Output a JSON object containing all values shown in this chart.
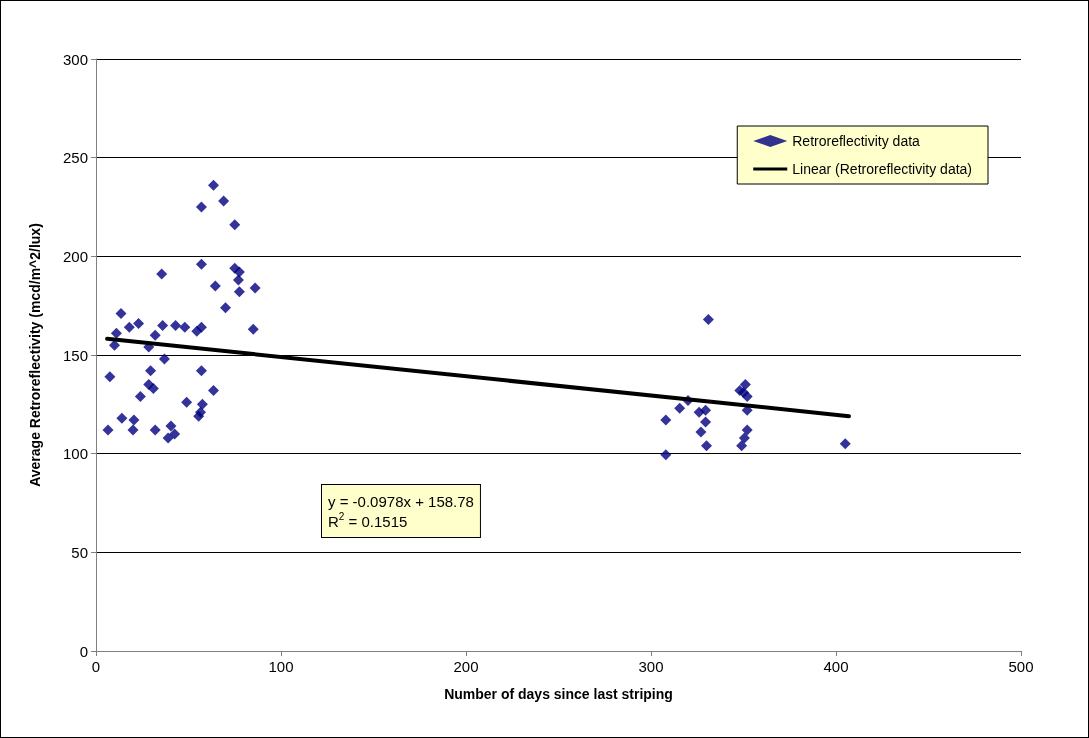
{
  "chart_data": {
    "type": "scatter",
    "xlabel": "Number of days since last striping",
    "ylabel": "Average Retroreflectivity (mcd/m^2/lux)",
    "xlim": [
      0,
      500
    ],
    "xticks": [
      0,
      100,
      200,
      300,
      400,
      500
    ],
    "ylim": [
      0,
      300
    ],
    "yticks": [
      0,
      50,
      100,
      150,
      200,
      250,
      300
    ],
    "grid": "y",
    "legend": "top right",
    "marker": "diamond",
    "annotations": [
      "y = -0.0978x + 158.78",
      "R$^{2}$ = 0.1515"
    ],
    "series": [
      {
        "name": "Retroreflectivity data",
        "color": "#000080",
        "x": [
          6.5,
          7.5,
          10,
          11,
          13.5,
          14,
          18,
          20,
          20.5,
          23,
          24,
          28.5,
          29.5,
          28.5,
          31,
          32,
          32,
          35.5,
          36,
          37,
          39,
          40.5,
          42.5,
          43,
          48,
          49,
          54.5,
          55.5,
          56.5,
          57,
          57,
          57,
          57,
          57.5,
          63.5,
          63.5,
          64.5,
          69,
          70,
          75,
          75,
          77,
          77.5,
          77.5,
          86,
          85,
          308,
          308,
          315.5,
          320,
          326,
          327,
          330,
          329.5,
          329.5,
          331,
          348,
          350,
          351,
          352,
          352,
          350.5,
          349,
          352,
          405
        ],
        "values": [
          112,
          139,
          155,
          161,
          171,
          118,
          164,
          112,
          117,
          166,
          129,
          154,
          142,
          135,
          133,
          160,
          112,
          191,
          165,
          148,
          108,
          114,
          110,
          165,
          164,
          126,
          162,
          119,
          121,
          225,
          196,
          164,
          142,
          125,
          132,
          236,
          185,
          228,
          174,
          216,
          194,
          188,
          192,
          182,
          184,
          163,
          117,
          99.5,
          123,
          127,
          121,
          111,
          104,
          122,
          116,
          168,
          132,
          131,
          135,
          129,
          122,
          108,
          104,
          112,
          105
        ]
      },
      {
        "name": "Linear (Retroreflectivity data)",
        "type": "line",
        "color": "#000000",
        "line_style": "solid",
        "marker": "none",
        "x": [
          6,
          407
        ],
        "values": [
          158.2,
          119.0
        ]
      }
    ]
  }
}
